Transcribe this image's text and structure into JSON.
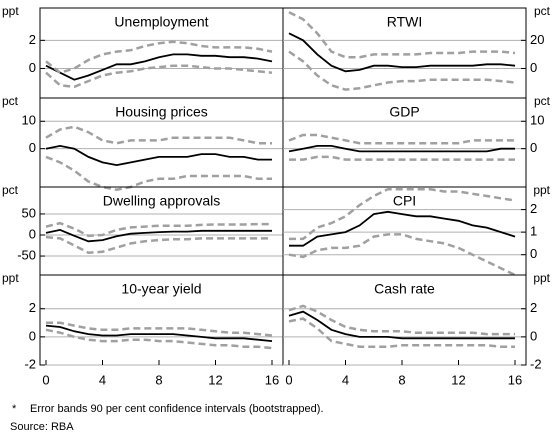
{
  "chart_data": [
    {
      "type": "line",
      "title": "Unemployment",
      "y_unit": "ppt",
      "axis_side": "left",
      "ylim": [
        -2.1,
        4.3
      ],
      "yticks": [
        0,
        2
      ],
      "xlim": [
        0,
        16
      ],
      "x": [
        0,
        1,
        2,
        3,
        4,
        5,
        6,
        7,
        8,
        9,
        10,
        11,
        12,
        13,
        14,
        15,
        16
      ],
      "series": [
        {
          "color": "#000000",
          "dash": false,
          "values": [
            0.2,
            -0.3,
            -0.8,
            -0.5,
            -0.1,
            0.3,
            0.3,
            0.5,
            0.8,
            1.0,
            1.0,
            0.9,
            0.9,
            0.8,
            0.8,
            0.7,
            0.5
          ]
        },
        {
          "color": "#a0a0a0",
          "dash": true,
          "values": [
            0.5,
            -0.3,
            0,
            0.6,
            1.0,
            1.2,
            1.3,
            1.6,
            1.8,
            1.9,
            1.8,
            1.6,
            1.5,
            1.5,
            1.5,
            1.4,
            1.2
          ]
        },
        {
          "color": "#a0a0a0",
          "dash": true,
          "values": [
            -0.3,
            -1.2,
            -1.3,
            -0.9,
            -0.5,
            -0.3,
            -0.2,
            0,
            0.1,
            0.2,
            0.2,
            0.1,
            0,
            0,
            -0.1,
            -0.2,
            -0.3
          ]
        }
      ]
    },
    {
      "type": "line",
      "title": "RTWI",
      "y_unit": "pct",
      "axis_side": "right",
      "ylim": [
        -21,
        43
      ],
      "yticks": [
        0,
        20
      ],
      "xlim": [
        0,
        16
      ],
      "x": [
        0,
        1,
        2,
        3,
        4,
        5,
        6,
        7,
        8,
        9,
        10,
        11,
        12,
        13,
        14,
        15,
        16
      ],
      "series": [
        {
          "color": "#000000",
          "dash": false,
          "values": [
            25,
            20,
            10,
            2,
            -2,
            -1,
            2,
            2,
            1,
            1,
            2,
            2,
            2,
            2,
            3,
            3,
            2
          ]
        },
        {
          "color": "#a0a0a0",
          "dash": true,
          "values": [
            40,
            35,
            25,
            12,
            8,
            8,
            10,
            10,
            10,
            10,
            11,
            11,
            11,
            12,
            12,
            12,
            11
          ]
        },
        {
          "color": "#a0a0a0",
          "dash": true,
          "values": [
            12,
            5,
            -5,
            -12,
            -15,
            -14,
            -12,
            -10,
            -9,
            -9,
            -8,
            -8,
            -8,
            -8,
            -8,
            -9,
            -10
          ]
        }
      ]
    },
    {
      "type": "line",
      "title": "Housing prices",
      "y_unit": "pct",
      "axis_side": "left",
      "ylim": [
        -14,
        18.5
      ],
      "yticks": [
        0,
        10
      ],
      "xlim": [
        0,
        16
      ],
      "x": [
        0,
        1,
        2,
        3,
        4,
        5,
        6,
        7,
        8,
        9,
        10,
        11,
        12,
        13,
        14,
        15,
        16
      ],
      "series": [
        {
          "color": "#000000",
          "dash": false,
          "values": [
            0,
            1,
            0,
            -3,
            -5,
            -6,
            -5,
            -4,
            -3,
            -3,
            -3,
            -2,
            -2,
            -3,
            -3,
            -4,
            -4
          ]
        },
        {
          "color": "#a0a0a0",
          "dash": true,
          "values": [
            4,
            7,
            8,
            6,
            3,
            2,
            3,
            3,
            3,
            4,
            4,
            4,
            4,
            4,
            3,
            2,
            2
          ]
        },
        {
          "color": "#a0a0a0",
          "dash": true,
          "values": [
            -3,
            -5,
            -8,
            -12,
            -14,
            -15,
            -14,
            -12,
            -11,
            -11,
            -10,
            -10,
            -10,
            -10,
            -10,
            -11,
            -11
          ]
        }
      ]
    },
    {
      "type": "line",
      "title": "GDP",
      "y_unit": "pct",
      "axis_side": "right",
      "ylim": [
        -14,
        18.5
      ],
      "yticks": [
        0,
        10
      ],
      "xlim": [
        0,
        16
      ],
      "x": [
        0,
        1,
        2,
        3,
        4,
        5,
        6,
        7,
        8,
        9,
        10,
        11,
        12,
        13,
        14,
        15,
        16
      ],
      "series": [
        {
          "color": "#000000",
          "dash": false,
          "values": [
            -1,
            0,
            1,
            1,
            0,
            -1,
            -1,
            -1,
            -1,
            -1,
            -1,
            -1,
            -1,
            -1,
            -1,
            0,
            0
          ]
        },
        {
          "color": "#a0a0a0",
          "dash": true,
          "values": [
            3,
            5,
            5,
            4,
            3,
            2,
            2,
            2,
            2,
            2,
            2,
            2,
            2,
            3,
            3,
            3,
            3
          ]
        },
        {
          "color": "#a0a0a0",
          "dash": true,
          "values": [
            -4,
            -4,
            -3,
            -3,
            -4,
            -4,
            -4,
            -4,
            -4,
            -4,
            -4,
            -4,
            -4,
            -4,
            -4,
            -4,
            -4
          ]
        }
      ]
    },
    {
      "type": "line",
      "title": "Dwelling approvals",
      "y_unit": "pct",
      "axis_side": "left",
      "ylim": [
        -95,
        114
      ],
      "yticks": [
        -50,
        0,
        50
      ],
      "xlim": [
        0,
        16
      ],
      "x": [
        0,
        1,
        2,
        3,
        4,
        5,
        6,
        7,
        8,
        9,
        10,
        11,
        12,
        13,
        14,
        15,
        16
      ],
      "series": [
        {
          "color": "#000000",
          "dash": false,
          "values": [
            5,
            12,
            -2,
            -15,
            -12,
            -3,
            3,
            5,
            7,
            8,
            8,
            10,
            10,
            10,
            10,
            10,
            10
          ]
        },
        {
          "color": "#a0a0a0",
          "dash": true,
          "values": [
            20,
            28,
            15,
            -2,
            0,
            12,
            18,
            20,
            22,
            22,
            22,
            24,
            25,
            25,
            25,
            26,
            26
          ]
        },
        {
          "color": "#a0a0a0",
          "dash": true,
          "values": [
            -5,
            -8,
            -25,
            -42,
            -40,
            -30,
            -20,
            -15,
            -12,
            -10,
            -10,
            -8,
            -8,
            -8,
            -8,
            -8,
            -8
          ]
        }
      ]
    },
    {
      "type": "line",
      "title": "CPI",
      "y_unit": "ppt",
      "axis_side": "right",
      "ylim": [
        -0.9,
        3.0
      ],
      "yticks": [
        0,
        1,
        2
      ],
      "xlim": [
        0,
        16
      ],
      "x": [
        0,
        1,
        2,
        3,
        4,
        5,
        6,
        7,
        8,
        9,
        10,
        11,
        12,
        13,
        14,
        15,
        16
      ],
      "series": [
        {
          "color": "#000000",
          "dash": false,
          "values": [
            0.4,
            0.4,
            0.8,
            0.9,
            1.0,
            1.3,
            1.8,
            1.9,
            1.8,
            1.7,
            1.7,
            1.6,
            1.5,
            1.3,
            1.2,
            1.0,
            0.8
          ]
        },
        {
          "color": "#a0a0a0",
          "dash": true,
          "values": [
            0.7,
            0.7,
            1.2,
            1.4,
            1.7,
            2.2,
            2.6,
            2.9,
            2.9,
            2.9,
            2.9,
            2.8,
            2.8,
            2.7,
            2.6,
            2.5,
            2.4
          ]
        },
        {
          "color": "#a0a0a0",
          "dash": true,
          "values": [
            0,
            -0.1,
            0.2,
            0.3,
            0.3,
            0.4,
            0.8,
            0.9,
            0.9,
            0.7,
            0.6,
            0.5,
            0.3,
            0,
            -0.3,
            -0.6,
            -0.9
          ]
        }
      ]
    },
    {
      "type": "line",
      "title": "10-year yield",
      "y_unit": "ppt",
      "axis_side": "left",
      "ylim": [
        -2,
        4.4
      ],
      "yticks": [
        -2,
        0,
        2
      ],
      "xlim": [
        0,
        16
      ],
      "xticks": [
        0,
        4,
        8,
        12,
        16
      ],
      "x": [
        0,
        1,
        2,
        3,
        4,
        5,
        6,
        7,
        8,
        9,
        10,
        11,
        12,
        13,
        14,
        15,
        16
      ],
      "series": [
        {
          "color": "#000000",
          "dash": false,
          "values": [
            0.8,
            0.7,
            0.4,
            0.2,
            0.1,
            0.1,
            0.2,
            0.2,
            0.2,
            0.2,
            0.1,
            0,
            -0.1,
            -0.1,
            -0.1,
            -0.2,
            -0.3
          ]
        },
        {
          "color": "#a0a0a0",
          "dash": true,
          "values": [
            1,
            1,
            0.8,
            0.6,
            0.5,
            0.5,
            0.6,
            0.6,
            0.6,
            0.6,
            0.6,
            0.5,
            0.4,
            0.3,
            0.3,
            0.2,
            0.1
          ]
        },
        {
          "color": "#a0a0a0",
          "dash": true,
          "values": [
            0.5,
            0.3,
            0,
            -0.2,
            -0.3,
            -0.3,
            -0.2,
            -0.2,
            -0.3,
            -0.3,
            -0.4,
            -0.5,
            -0.6,
            -0.6,
            -0.7,
            -0.7,
            -0.8
          ]
        }
      ]
    },
    {
      "type": "line",
      "title": "Cash rate",
      "y_unit": "ppt",
      "axis_side": "right",
      "ylim": [
        -2,
        4.4
      ],
      "yticks": [
        -2,
        0,
        2
      ],
      "xlim": [
        0,
        16
      ],
      "xticks": [
        0,
        4,
        8,
        12,
        16
      ],
      "x": [
        0,
        1,
        2,
        3,
        4,
        5,
        6,
        7,
        8,
        9,
        10,
        11,
        12,
        13,
        14,
        15,
        16
      ],
      "series": [
        {
          "color": "#000000",
          "dash": false,
          "values": [
            1.5,
            1.8,
            1.2,
            0.5,
            0.2,
            0,
            0,
            0,
            -0.1,
            -0.1,
            -0.1,
            -0.1,
            -0.1,
            -0.1,
            -0.1,
            -0.1,
            -0.1
          ]
        },
        {
          "color": "#a0a0a0",
          "dash": true,
          "values": [
            1.9,
            2.2,
            1.8,
            1.2,
            0.7,
            0.5,
            0.4,
            0.4,
            0.4,
            0.3,
            0.3,
            0.3,
            0.3,
            0.3,
            0.2,
            0.2,
            0.2
          ]
        },
        {
          "color": "#a0a0a0",
          "dash": true,
          "values": [
            1.1,
            1.3,
            0.6,
            -0.3,
            -0.5,
            -0.7,
            -0.7,
            -0.7,
            -0.6,
            -0.6,
            -0.6,
            -0.6,
            -0.6,
            -0.6,
            -0.6,
            -0.7,
            -0.7
          ]
        }
      ]
    }
  ],
  "footnote_marker": "*",
  "footnote": "Error bands 90 per cent confidence intervals (bootstrapped).",
  "source": "Source: RBA"
}
